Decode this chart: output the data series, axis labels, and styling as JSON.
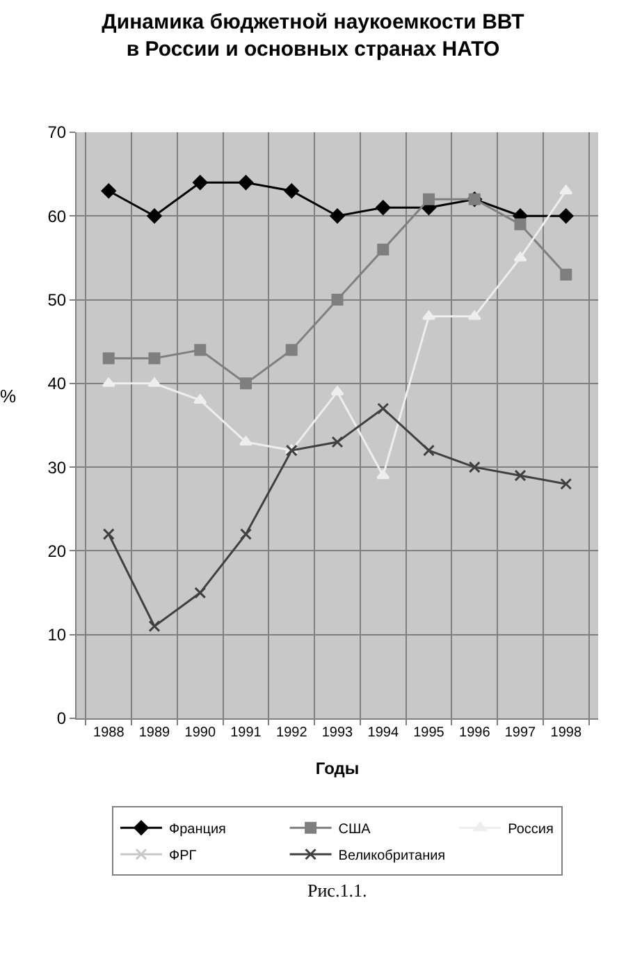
{
  "chart_data": {
    "type": "line",
    "title": "Динамика бюджетной наукоемкости ВВТ\nв России и основных странах НАТО",
    "xlabel": "Годы",
    "ylabel": "%",
    "categories": [
      "1988",
      "1989",
      "1990",
      "1991",
      "1992",
      "1993",
      "1994",
      "1995",
      "1996",
      "1997",
      "1998"
    ],
    "series": [
      {
        "name": "Франция",
        "color": "#000000",
        "marker": "diamond",
        "values": [
          63,
          60,
          64,
          64,
          63,
          60,
          61,
          61,
          62,
          60,
          60
        ]
      },
      {
        "name": "США",
        "color": "#7f7f7f",
        "marker": "square",
        "values": [
          43,
          43,
          44,
          40,
          44,
          50,
          56,
          62,
          62,
          59,
          53
        ]
      },
      {
        "name": "Россия",
        "color": "#eeeeee",
        "marker": "triangle",
        "values": [
          40,
          40,
          38,
          33,
          32,
          39,
          29,
          48,
          48,
          55,
          63
        ]
      },
      {
        "name": "ФРГ",
        "color": "#c8c8c8",
        "marker": "cross",
        "values": [
          null,
          null,
          null,
          null,
          null,
          null,
          null,
          null,
          null,
          null,
          null
        ]
      },
      {
        "name": "Великобритания",
        "color": "#404040",
        "marker": "cross",
        "values": [
          22,
          11,
          15,
          22,
          32,
          33,
          37,
          32,
          30,
          29,
          28
        ]
      }
    ],
    "ylim": [
      0,
      70
    ],
    "yticks": [
      0,
      10,
      20,
      30,
      40,
      50,
      60,
      70
    ],
    "grid": true,
    "legend": "bottom",
    "line_style": "solid",
    "annotations": [
      "Рис.1.1."
    ]
  }
}
